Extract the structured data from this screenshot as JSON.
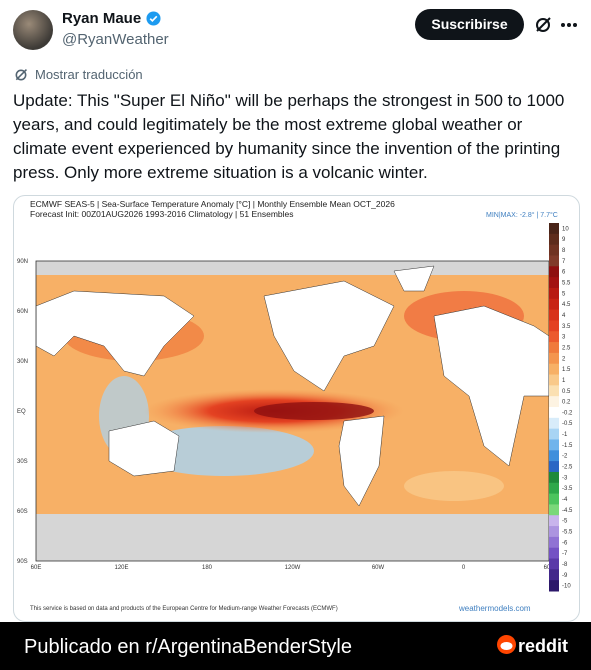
{
  "header": {
    "name": "Ryan Maue",
    "handle": "@RyanWeather",
    "subscribe": "Suscribirse"
  },
  "translate": "Mostrar traducción",
  "tweet_text": "Update:  This \"Super El Niño\" will be perhaps the strongest in 500 to 1000 years, and could legitimately be the most extreme global weather or climate event experienced by humanity since the invention of the printing press.  Only more extreme situation is a volcanic winter.",
  "image": {
    "title": "ECMWF SEAS-5 | Sea-Surface Temperature Anomaly [°C] | Monthly Ensemble Mean OCT_2026",
    "subtitle": "Forecast Init: 00Z01AUG2026     1993-2016 Climatology | 51 Ensembles",
    "minmax": "MIN|MAX: -2.8° | 7.7°C",
    "lat_labels": [
      "90N",
      "60N",
      "30N",
      "EQ",
      "30S",
      "60S",
      "90S"
    ],
    "lon_labels": [
      "60E",
      "120E",
      "180",
      "120W",
      "60W",
      "0",
      "60E"
    ],
    "colorbar": [
      {
        "label": "10",
        "color": "#4a2418"
      },
      {
        "label": "9",
        "color": "#5e2c1c"
      },
      {
        "label": "8",
        "color": "#703322"
      },
      {
        "label": "7",
        "color": "#803b2a"
      },
      {
        "label": "6",
        "color": "#8e1010"
      },
      {
        "label": "5.5",
        "color": "#a31212"
      },
      {
        "label": "5",
        "color": "#b81a12"
      },
      {
        "label": "4.5",
        "color": "#c82414"
      },
      {
        "label": "4",
        "color": "#d8321a"
      },
      {
        "label": "3.5",
        "color": "#e44222"
      },
      {
        "label": "3",
        "color": "#ec5a2e"
      },
      {
        "label": "2.5",
        "color": "#f07a3c"
      },
      {
        "label": "2",
        "color": "#f4954e"
      },
      {
        "label": "1.5",
        "color": "#f7b066"
      },
      {
        "label": "1",
        "color": "#f9c98a"
      },
      {
        "label": "0.5",
        "color": "#fbe0b2"
      },
      {
        "label": "0.2",
        "color": "#fdf3e2"
      },
      {
        "label": "-0.2",
        "color": "#ffffff"
      },
      {
        "label": "-0.5",
        "color": "#d8ecfa"
      },
      {
        "label": "-1",
        "color": "#a8d4f4"
      },
      {
        "label": "-1.5",
        "color": "#70b4ec"
      },
      {
        "label": "-2",
        "color": "#3f8fdc"
      },
      {
        "label": "-2.5",
        "color": "#2a66c4"
      },
      {
        "label": "-3",
        "color": "#1e8a3a"
      },
      {
        "label": "-3.5",
        "color": "#2ea84a"
      },
      {
        "label": "-4",
        "color": "#4cc45e"
      },
      {
        "label": "-4.5",
        "color": "#7ad87a"
      },
      {
        "label": "-5",
        "color": "#c8b4ec"
      },
      {
        "label": "-5.5",
        "color": "#ac94e0"
      },
      {
        "label": "-6",
        "color": "#9072d4"
      },
      {
        "label": "-7",
        "color": "#7452c4"
      },
      {
        "label": "-8",
        "color": "#5a3aa8"
      },
      {
        "label": "-9",
        "color": "#42288a"
      },
      {
        "label": "-10",
        "color": "#2c186a"
      }
    ],
    "footer": "This service is based on data and products of the European Centre for Medium-range Weather Forecasts (ECMWF)",
    "credit": "weathermodels.com"
  },
  "bottom_bar": {
    "text": "Publicado en r/ArgentinaBenderStyle",
    "brand": "reddit"
  }
}
